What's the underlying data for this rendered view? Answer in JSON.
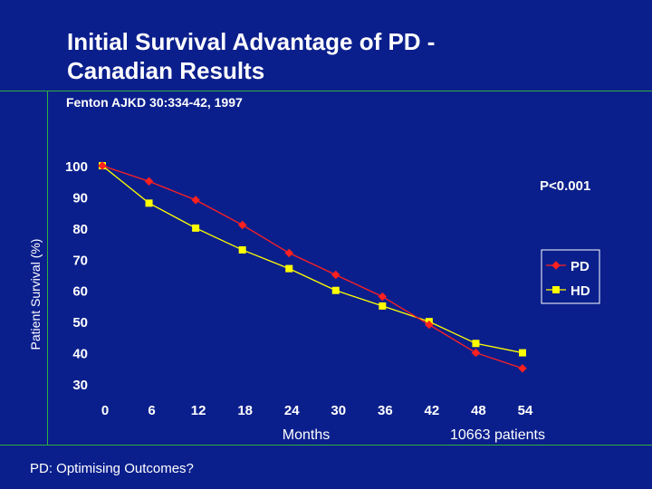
{
  "slide": {
    "title_line1": "Initial Survival Advantage of PD -",
    "title_line2": "Canadian Results",
    "subtitle": "Fenton AJKD 30:334-42, 1997",
    "footer": "PD: Optimising Outcomes?",
    "accent_color": "#2fae3e",
    "background_color": "#0b1f8c"
  },
  "chart_data": {
    "type": "line",
    "xlabel": "Months",
    "ylabel": "Patient Survival (%)",
    "x": [
      0,
      6,
      12,
      18,
      24,
      30,
      36,
      42,
      48,
      54
    ],
    "ylim": [
      30,
      100
    ],
    "yticks": [
      30,
      40,
      50,
      60,
      70,
      80,
      90,
      100
    ],
    "series": [
      {
        "name": "PD",
        "color": "#ff2020",
        "marker": "diamond",
        "values": [
          100,
          95,
          89,
          81,
          72,
          65,
          58,
          49,
          40,
          35
        ]
      },
      {
        "name": "HD",
        "color": "#ffff00",
        "marker": "square",
        "values": [
          100,
          88,
          80,
          73,
          67,
          60,
          55,
          50,
          43,
          40
        ]
      }
    ],
    "annotations": {
      "pvalue": "P<0.001",
      "patients": "10663 patients"
    },
    "legend_position": "right",
    "grid": false
  }
}
